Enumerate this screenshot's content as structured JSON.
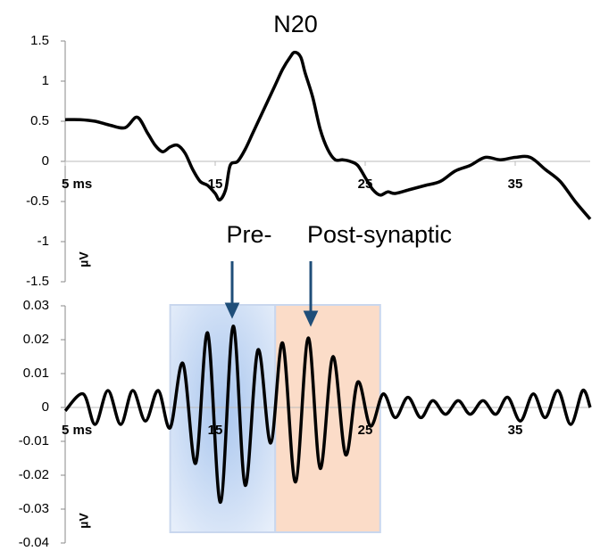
{
  "chart_data": [
    {
      "type": "line",
      "title": "N20",
      "y_label": "µV",
      "annotations": [
        "Pre-",
        "Post-synaptic"
      ],
      "x": [
        5,
        6,
        7,
        8,
        9,
        9.8,
        10.5,
        11,
        11.5,
        12,
        12.5,
        13,
        13.5,
        14,
        14.5,
        15,
        15.3,
        15.7,
        16,
        16.5,
        17,
        17.5,
        18,
        18.5,
        19,
        19.5,
        20,
        20.3,
        20.7,
        21,
        21.5,
        22,
        22.5,
        23,
        23.5,
        24,
        24.5,
        25,
        25.5,
        26,
        26.5,
        27,
        28,
        29,
        30,
        31,
        32,
        33,
        34,
        35,
        36,
        37,
        38,
        39,
        40
      ],
      "series": [
        {
          "color": "#000000",
          "values": [
            0.52,
            0.52,
            0.5,
            0.45,
            0.42,
            0.55,
            0.35,
            0.2,
            0.12,
            0.18,
            0.2,
            0.1,
            -0.1,
            -0.25,
            -0.3,
            -0.4,
            -0.48,
            -0.35,
            -0.05,
            0.0,
            0.15,
            0.35,
            0.55,
            0.75,
            0.95,
            1.15,
            1.3,
            1.36,
            1.3,
            1.1,
            0.8,
            0.4,
            0.15,
            0.02,
            0.02,
            0.0,
            -0.05,
            -0.2,
            -0.35,
            -0.42,
            -0.38,
            -0.4,
            -0.35,
            -0.3,
            -0.25,
            -0.12,
            -0.05,
            0.05,
            0.02,
            0.05,
            0.05,
            -0.1,
            -0.25,
            -0.5,
            -0.72
          ]
        }
      ],
      "xlim": [
        5,
        40
      ],
      "xticks": [
        {
          "value": 5,
          "label": "5 ms"
        },
        15,
        25,
        35
      ],
      "ylim": [
        -1.5,
        1.5
      ],
      "yticks": [
        -1.5,
        -1,
        -0.5,
        0,
        0.5,
        1,
        1.5
      ]
    },
    {
      "type": "line",
      "y_label": "µV",
      "shaded_regions": [
        {
          "x0": 12,
          "x1": 19,
          "color": "#c9dbf3"
        },
        {
          "x0": 19,
          "x1": 26,
          "color": "#fbdcc8"
        }
      ],
      "x": [
        5,
        6.2,
        7,
        7.85,
        8.7,
        9.5,
        10.35,
        11.2,
        12,
        12.85,
        13.7,
        14.5,
        15.35,
        16.2,
        17,
        17.85,
        18.7,
        19.5,
        20.35,
        21.2,
        22,
        22.85,
        23.7,
        24.5,
        25.35,
        26.2,
        27,
        27.85,
        28.7,
        29.5,
        30.35,
        31.2,
        32,
        32.85,
        33.7,
        34.5,
        35.35,
        36.2,
        37,
        37.85,
        38.7,
        39.5,
        40
      ],
      "series": [
        {
          "color": "#000000",
          "values": [
            -0.001,
            0.004,
            -0.005,
            0.005,
            -0.005,
            0.005,
            -0.004,
            0.005,
            -0.006,
            0.013,
            -0.0165,
            0.022,
            -0.028,
            0.024,
            -0.023,
            0.017,
            -0.0105,
            0.019,
            -0.022,
            0.0205,
            -0.018,
            0.015,
            -0.014,
            0.0075,
            -0.0055,
            0.004,
            -0.003,
            0.003,
            -0.003,
            0.002,
            -0.002,
            0.002,
            -0.002,
            0.002,
            -0.002,
            0.003,
            -0.004,
            0.004,
            -0.003,
            0.005,
            -0.005,
            0.005,
            0.0
          ]
        }
      ],
      "xlim": [
        5,
        40
      ],
      "xticks": [
        {
          "value": 5,
          "label": "5 ms"
        },
        15,
        25,
        35
      ],
      "ylim": [
        -0.04,
        0.03
      ],
      "yticks": [
        -0.04,
        -0.03,
        -0.02,
        -0.01,
        0,
        0.01,
        0.02,
        0.03
      ]
    }
  ]
}
